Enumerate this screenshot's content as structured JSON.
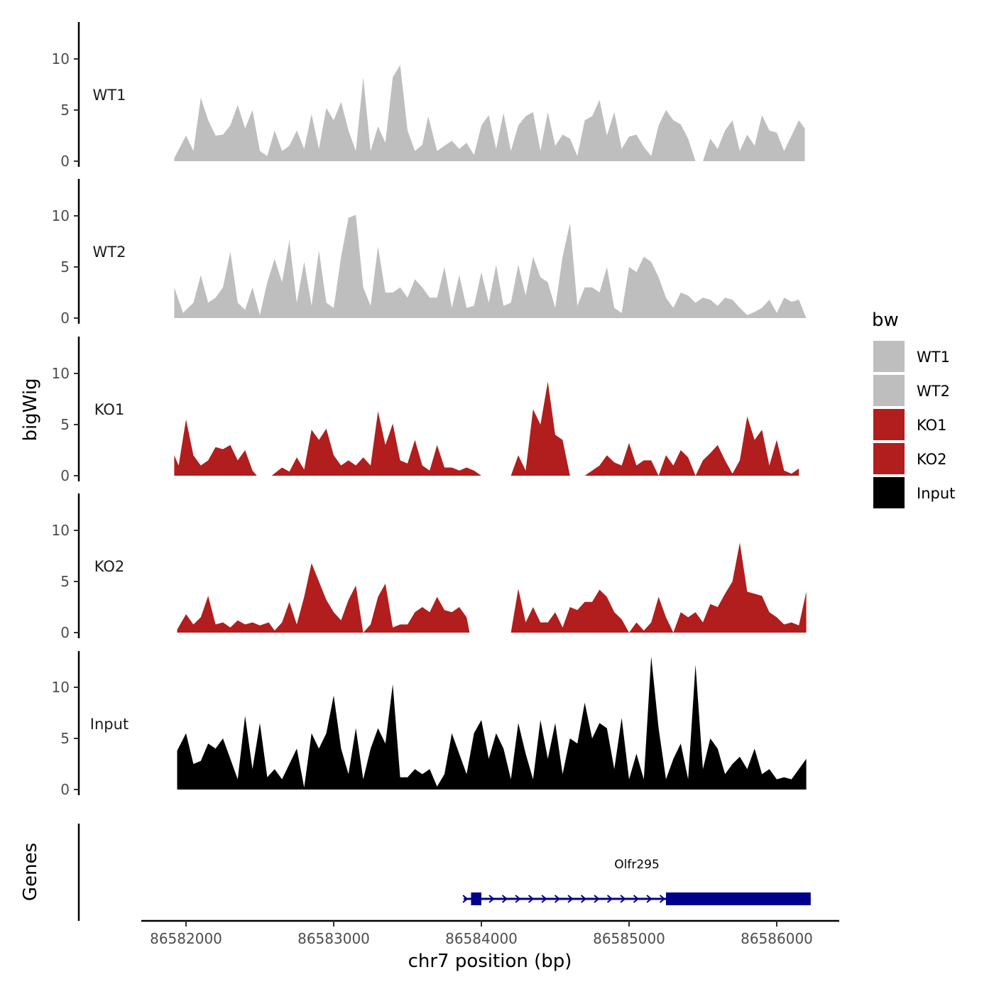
{
  "chart_data": {
    "type": "area",
    "title": "",
    "xlabel": "chr7 position (bp)",
    "ylabel": "bigWig",
    "genes_ylabel": "Genes",
    "xlim": [
      86581900,
      86586200
    ],
    "x_ticks": [
      86582000,
      86583000,
      86584000,
      86585000,
      86586000
    ],
    "ylim": [
      0,
      14
    ],
    "y_ticks": [
      0,
      5,
      10
    ],
    "legend": {
      "title": "bw",
      "position": "right",
      "entries": [
        {
          "label": "WT1",
          "color": "#bebebe"
        },
        {
          "label": "WT2",
          "color": "#bebebe"
        },
        {
          "label": "KO1",
          "color": "#b21d1d"
        },
        {
          "label": "KO2",
          "color": "#b21d1d"
        },
        {
          "label": "Input",
          "color": "#000000"
        }
      ]
    },
    "series": [
      {
        "name": "WT1",
        "color": "#bebebe",
        "x": [
          86581920,
          86582000,
          86582050,
          86582100,
          86582150,
          86582200,
          86582250,
          86582300,
          86582350,
          86582400,
          86582450,
          86582500,
          86582550,
          86582600,
          86582650,
          86582700,
          86582750,
          86582800,
          86582850,
          86582900,
          86582950,
          86583000,
          86583050,
          86583100,
          86583150,
          86583200,
          86583250,
          86583300,
          86583350,
          86583400,
          86583450,
          86583500,
          86583550,
          86583600,
          86583640,
          86583700,
          86583750,
          86583800,
          86583850,
          86583900,
          86583950,
          86584000,
          86584050,
          86584100,
          86584150,
          86584200,
          86584250,
          86584300,
          86584350,
          86584400,
          86584450,
          86584500,
          86584550,
          86584600,
          86584650,
          86584700,
          86584750,
          86584800,
          86584850,
          86584900,
          86584950,
          86585000,
          86585050,
          86585100,
          86585150,
          86585200,
          86585250,
          86585300,
          86585350,
          86585400,
          86585450,
          86585500,
          86585550,
          86585600,
          86585650,
          86585700,
          86585750,
          86585800,
          86585850,
          86585900,
          86585950,
          86586000,
          86586050,
          86586100,
          86586150,
          86586190
        ],
        "values": [
          0.3,
          2.5,
          1.0,
          6.2,
          4.0,
          2.5,
          2.6,
          3.5,
          5.5,
          3.2,
          5.0,
          1.0,
          0.5,
          3.0,
          1.0,
          1.5,
          3.0,
          1.2,
          4.6,
          1.2,
          5.2,
          4.0,
          5.8,
          3.0,
          1.0,
          8.2,
          1.0,
          3.4,
          1.8,
          8.2,
          9.4,
          3.0,
          1.0,
          1.6,
          4.4,
          1.0,
          1.5,
          2.0,
          1.2,
          1.8,
          0.6,
          3.5,
          4.5,
          1.2,
          4.7,
          1.0,
          3.5,
          4.4,
          4.8,
          1.0,
          4.8,
          1.5,
          2.6,
          2.2,
          0.5,
          4.0,
          4.4,
          6.0,
          2.5,
          4.8,
          1.2,
          2.4,
          2.6,
          1.4,
          0.5,
          3.5,
          5.0,
          4.0,
          3.6,
          2.2,
          0.0,
          0.0,
          2.2,
          1.2,
          3.0,
          4.0,
          1.0,
          2.6,
          1.5,
          4.5,
          3.0,
          2.8,
          1.0,
          2.5,
          4.0,
          3.2
        ]
      },
      {
        "name": "WT2",
        "color": "#bebebe",
        "x": [
          86581920,
          86581980,
          86582050,
          86582100,
          86582150,
          86582200,
          86582250,
          86582300,
          86582350,
          86582400,
          86582450,
          86582500,
          86582550,
          86582600,
          86582650,
          86582700,
          86582750,
          86582800,
          86582850,
          86582900,
          86582950,
          86583000,
          86583050,
          86583100,
          86583150,
          86583200,
          86583250,
          86583300,
          86583350,
          86583400,
          86583450,
          86583500,
          86583550,
          86583600,
          86583650,
          86583700,
          86583750,
          86583800,
          86583850,
          86583900,
          86583950,
          86584000,
          86584050,
          86584100,
          86584150,
          86584200,
          86584250,
          86584300,
          86584350,
          86584400,
          86584450,
          86584500,
          86584550,
          86584600,
          86584650,
          86584700,
          86584750,
          86584800,
          86584850,
          86584900,
          86584950,
          86585000,
          86585050,
          86585100,
          86585150,
          86585200,
          86585250,
          86585300,
          86585350,
          86585400,
          86585450,
          86585500,
          86585550,
          86585600,
          86585650,
          86585700,
          86585750,
          86585800,
          86585850,
          86585900,
          86585950,
          86586000,
          86586050,
          86586100,
          86586150,
          86586200
        ],
        "values": [
          3.0,
          0.5,
          1.5,
          4.2,
          1.5,
          2.0,
          3.0,
          6.5,
          1.5,
          0.8,
          3.0,
          0.3,
          3.5,
          5.8,
          3.5,
          7.6,
          1.5,
          5.5,
          1.2,
          6.6,
          1.5,
          1.0,
          6.0,
          9.8,
          10.1,
          3.0,
          1.2,
          7.0,
          2.5,
          2.5,
          3.0,
          2.0,
          3.8,
          3.0,
          2.0,
          2.0,
          5.0,
          1.0,
          4.2,
          1.0,
          1.2,
          4.5,
          1.5,
          5.2,
          1.2,
          1.5,
          5.2,
          2.2,
          6.0,
          4.0,
          3.5,
          1.0,
          6.0,
          9.3,
          1.2,
          3.0,
          3.0,
          2.5,
          5.0,
          1.0,
          0.5,
          5.0,
          4.5,
          6.0,
          5.5,
          4.0,
          2.0,
          1.0,
          2.5,
          2.2,
          1.5,
          2.0,
          1.8,
          1.2,
          2.0,
          1.8,
          1.0,
          0.3,
          0.6,
          1.0,
          1.8,
          0.5,
          2.0,
          1.6,
          1.8,
          0.0
        ]
      },
      {
        "name": "KO1",
        "color": "#b21d1d",
        "x": [
          86581920,
          86581950,
          86582000,
          86582050,
          86582100,
          86582150,
          86582200,
          86582250,
          86582300,
          86582350,
          86582400,
          86582450,
          86582480,
          86582580,
          86582650,
          86582700,
          86582750,
          86582800,
          86582850,
          86582900,
          86582950,
          86583000,
          86583050,
          86583100,
          86583150,
          86583200,
          86583250,
          86583300,
          86583350,
          86583400,
          86583450,
          86583500,
          86583550,
          86583600,
          86583650,
          86583700,
          86583750,
          86583800,
          86583850,
          86583900,
          86583950,
          86584000,
          86584050,
          86584080,
          86584200,
          86584250,
          86584300,
          86584350,
          86584400,
          86584450,
          86584500,
          86584550,
          86584600,
          86584650,
          86584700,
          86584800,
          86584850,
          86584900,
          86584950,
          86585000,
          86585050,
          86585100,
          86585150,
          86585200,
          86585250,
          86585300,
          86585350,
          86585400,
          86585450,
          86585500,
          86585550,
          86585600,
          86585650,
          86585700,
          86585750,
          86585800,
          86585850,
          86585900,
          86585950,
          86586000,
          86586050,
          86586100,
          86586150
        ],
        "values": [
          2.0,
          1.0,
          5.5,
          2.0,
          1.0,
          1.5,
          2.8,
          2.6,
          3.0,
          1.5,
          2.5,
          0.5,
          0.0,
          0.0,
          0.8,
          0.4,
          1.8,
          0.6,
          4.5,
          3.5,
          4.6,
          2.0,
          1.0,
          1.5,
          1.0,
          1.8,
          1.0,
          6.3,
          3.0,
          5.1,
          1.5,
          1.2,
          3.5,
          1.0,
          0.5,
          3.0,
          0.8,
          0.8,
          0.5,
          0.8,
          0.5,
          0.0,
          0.0,
          0.0,
          0.0,
          2.0,
          0.5,
          6.5,
          5.0,
          9.2,
          4.0,
          3.5,
          0.0,
          0.0,
          0.0,
          1.0,
          2.0,
          1.3,
          1.0,
          3.2,
          1.0,
          1.5,
          1.5,
          0.0,
          2.0,
          1.0,
          2.5,
          1.8,
          0.0,
          1.5,
          2.2,
          3.0,
          1.5,
          0.2,
          1.5,
          5.8,
          3.5,
          4.5,
          1.0,
          3.5,
          0.5,
          0.2,
          0.7
        ]
      },
      {
        "name": "KO2",
        "color": "#b21d1d",
        "x": [
          86581940,
          86582000,
          86582050,
          86582100,
          86582150,
          86582200,
          86582250,
          86582300,
          86582350,
          86582400,
          86582450,
          86582500,
          86582560,
          86582600,
          86582650,
          86582700,
          86582750,
          86582800,
          86582850,
          86582900,
          86582950,
          86583000,
          86583050,
          86583100,
          86583150,
          86583200,
          86583250,
          86583300,
          86583350,
          86583400,
          86583450,
          86583500,
          86583550,
          86583600,
          86583650,
          86583700,
          86583750,
          86583800,
          86583850,
          86583900,
          86583920,
          86584000,
          86584050,
          86584100,
          86584200,
          86584250,
          86584300,
          86584350,
          86584400,
          86584450,
          86584500,
          86584550,
          86584600,
          86584650,
          86584700,
          86584750,
          86584800,
          86584850,
          86584900,
          86584950,
          86585000,
          86585050,
          86585100,
          86585150,
          86585200,
          86585250,
          86585300,
          86585350,
          86585400,
          86585450,
          86585500,
          86585550,
          86585600,
          86585650,
          86585700,
          86585750,
          86585800,
          86585850,
          86585900,
          86585950,
          86586000,
          86586050,
          86586100,
          86586150,
          86586200
        ],
        "values": [
          0.3,
          1.8,
          0.8,
          1.5,
          3.6,
          0.8,
          1.0,
          0.5,
          1.2,
          0.8,
          1.0,
          0.7,
          1.0,
          0.2,
          1.0,
          3.0,
          0.8,
          3.5,
          6.8,
          5.0,
          3.2,
          2.0,
          1.2,
          3.2,
          4.6,
          0.0,
          0.8,
          3.5,
          4.8,
          0.5,
          0.8,
          0.8,
          2.0,
          2.5,
          2.0,
          3.5,
          2.2,
          2.0,
          2.5,
          1.5,
          0.0,
          0.0,
          0.0,
          0.0,
          0.0,
          4.3,
          1.0,
          2.5,
          1.0,
          1.0,
          2.0,
          0.5,
          2.5,
          2.2,
          3.0,
          3.0,
          4.2,
          3.5,
          2.0,
          1.3,
          0.0,
          1.0,
          0.2,
          1.0,
          3.5,
          1.5,
          0.0,
          2.0,
          1.5,
          2.0,
          1.0,
          2.8,
          2.5,
          3.8,
          5.0,
          8.8,
          4.0,
          3.8,
          3.6,
          2.0,
          1.5,
          0.8,
          1.0,
          0.7,
          4.0
        ]
      },
      {
        "name": "Input",
        "color": "#000000",
        "x": [
          86581940,
          86582000,
          86582050,
          86582100,
          86582150,
          86582200,
          86582250,
          86582300,
          86582350,
          86582400,
          86582450,
          86582500,
          86582550,
          86582600,
          86582650,
          86582700,
          86582750,
          86582800,
          86582850,
          86582900,
          86582950,
          86583000,
          86583050,
          86583100,
          86583150,
          86583200,
          86583250,
          86583300,
          86583350,
          86583400,
          86583450,
          86583500,
          86583550,
          86583600,
          86583650,
          86583700,
          86583750,
          86583800,
          86583850,
          86583900,
          86583950,
          86584000,
          86584050,
          86584100,
          86584150,
          86584200,
          86584250,
          86584300,
          86584350,
          86584400,
          86584450,
          86584500,
          86584550,
          86584600,
          86584650,
          86584700,
          86584750,
          86584800,
          86584850,
          86584900,
          86584950,
          86585000,
          86585050,
          86585100,
          86585150,
          86585200,
          86585250,
          86585300,
          86585350,
          86585400,
          86585450,
          86585500,
          86585550,
          86585600,
          86585650,
          86585700,
          86585750,
          86585800,
          86585850,
          86585900,
          86585950,
          86586000,
          86586050,
          86586100,
          86586150,
          86586200
        ],
        "values": [
          3.8,
          5.5,
          2.5,
          2.8,
          4.5,
          4.0,
          5.0,
          3.0,
          1.0,
          7.2,
          2.0,
          6.5,
          1.2,
          2.0,
          1.0,
          2.5,
          4.0,
          0.2,
          5.5,
          4.0,
          5.5,
          9.2,
          4.0,
          1.5,
          6.0,
          1.0,
          4.0,
          6.0,
          4.5,
          10.3,
          1.2,
          1.2,
          2.0,
          1.5,
          2.0,
          0.3,
          1.5,
          5.5,
          3.5,
          1.5,
          5.5,
          6.8,
          3.0,
          5.5,
          4.0,
          1.0,
          6.5,
          3.5,
          1.0,
          6.8,
          3.0,
          6.5,
          1.5,
          5.0,
          4.5,
          8.5,
          5.0,
          6.5,
          6.0,
          2.0,
          7.0,
          1.0,
          3.5,
          1.0,
          13.0,
          6.0,
          1.0,
          3.0,
          4.5,
          1.0,
          12.2,
          2.0,
          5.0,
          4.0,
          1.5,
          2.5,
          3.2,
          2.0,
          4.0,
          1.5,
          2.0,
          1.0,
          1.2,
          1.0,
          2.0,
          3.0
        ]
      }
    ],
    "genes": [
      {
        "name": "Olfr295",
        "start": 86583880,
        "end": 86586230,
        "strand": "+",
        "color": "#00008b",
        "exons": [
          [
            86583930,
            86584000
          ],
          [
            86585250,
            86586230
          ]
        ]
      }
    ]
  }
}
